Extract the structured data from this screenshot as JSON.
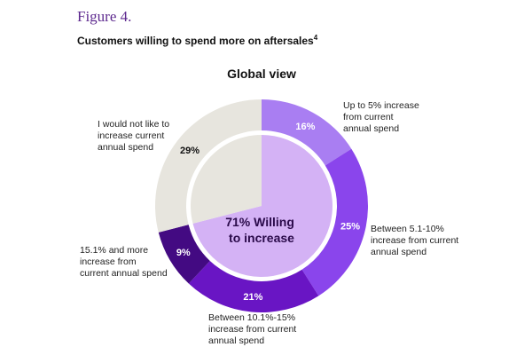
{
  "figure_label": "Figure 4.",
  "title": "Customers willing to spend more on aftersales",
  "title_footnote": "4",
  "chart_data": {
    "type": "pie",
    "title": "Global view",
    "center_label": [
      "71% Willing",
      "to increase"
    ],
    "inner": {
      "categories": [
        "Willing to increase",
        "I would not like to increase current annual spend"
      ],
      "values": [
        71,
        29
      ],
      "colors": [
        "#d4b2f5",
        "#e7e5de"
      ]
    },
    "slices": [
      {
        "value": 16,
        "label": "16%",
        "annotation": [
          "Up to 5% increase",
          "from current",
          "annual spend"
        ],
        "color": "#a97ef2"
      },
      {
        "value": 25,
        "label": "25%",
        "annotation": [
          "Between 5.1-10%",
          "increase from current",
          "annual spend"
        ],
        "color": "#8a45ec"
      },
      {
        "value": 21,
        "label": "21%",
        "annotation": [
          "Between 10.1%-15%",
          "increase from current",
          "annual spend"
        ],
        "color": "#6915c4"
      },
      {
        "value": 9,
        "label": "9%",
        "annotation": [
          "15.1% and more",
          "increase from",
          "current annual spend"
        ],
        "color": "#430a82"
      },
      {
        "value": 29,
        "label": "29%",
        "annotation": [
          "I would not like to",
          "increase current",
          "annual spend"
        ],
        "color": "#e7e5de"
      }
    ]
  }
}
